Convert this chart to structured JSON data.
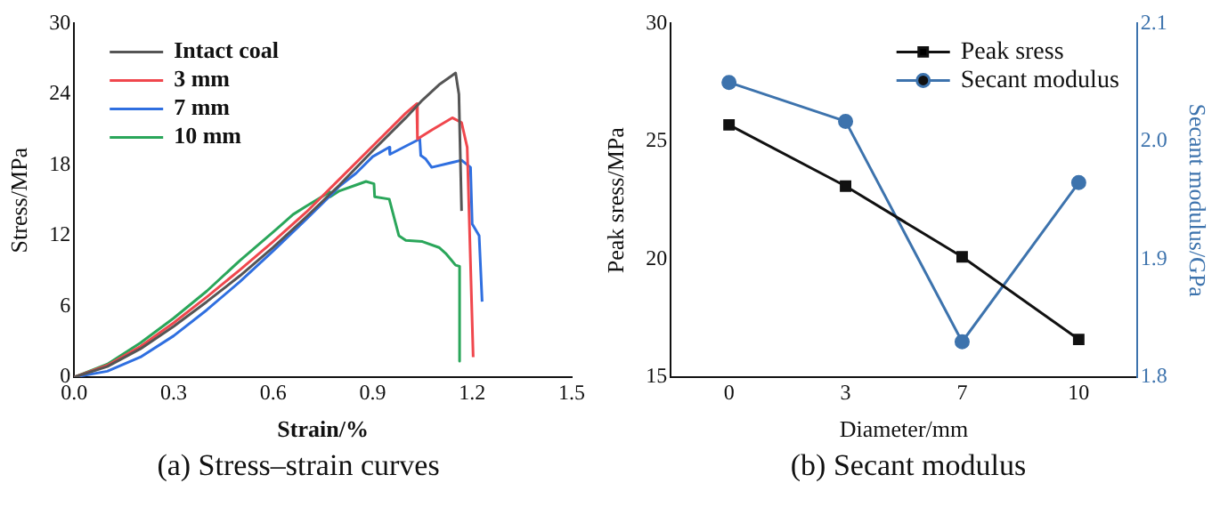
{
  "chart_data": [
    {
      "type": "line",
      "title": "(a) Stress–strain curves",
      "xlabel": "Strain/%",
      "ylabel": "Stress/MPa",
      "legend": "top left",
      "marker": "none",
      "xlim": [
        0,
        1.5
      ],
      "xticks": [
        {
          "value": 0,
          "label": "0.0"
        },
        0.3,
        0.6,
        0.9,
        1.2,
        1.5
      ],
      "ylim": [
        0,
        30
      ],
      "yticks": [
        0,
        6,
        12,
        18,
        24,
        30
      ],
      "series": [
        {
          "name": "Intact coal",
          "color": "#555555",
          "x": [
            0,
            0.1,
            0.2,
            0.3,
            0.4,
            0.5,
            0.6,
            0.7,
            0.8,
            0.9,
            1.0,
            1.05,
            1.1,
            1.14,
            1.15,
            1.16,
            1.168
          ],
          "values": [
            0,
            0.9,
            2.4,
            4.3,
            6.4,
            8.6,
            11,
            13.6,
            16.3,
            19.2,
            22,
            23.5,
            24.8,
            25.6,
            25.8,
            24,
            14.1
          ]
        },
        {
          "name": "3 mm",
          "color": "#f0474d",
          "x": [
            0,
            0.1,
            0.2,
            0.3,
            0.4,
            0.5,
            0.6,
            0.7,
            0.8,
            0.9,
            1.0,
            1.033,
            1.035,
            1.08,
            1.14,
            1.168,
            1.185,
            1.203
          ],
          "values": [
            0,
            1.0,
            2.6,
            4.6,
            6.8,
            9.1,
            11.5,
            14.0,
            16.8,
            19.6,
            22.4,
            23.2,
            20.2,
            21.0,
            22.0,
            21.6,
            19.5,
            1.7
          ]
        },
        {
          "name": "7 mm",
          "color": "#2f6fe0",
          "x": [
            0,
            0.1,
            0.2,
            0.3,
            0.4,
            0.5,
            0.6,
            0.7,
            0.78,
            0.8,
            0.85,
            0.9,
            0.95,
            0.952,
            1.0,
            1.042,
            1.045,
            1.06,
            1.078,
            1.168,
            1.195,
            1.2,
            1.221,
            1.23
          ],
          "values": [
            0,
            0.5,
            1.7,
            3.5,
            5.7,
            8.1,
            10.7,
            13.4,
            15.6,
            16.2,
            17.3,
            18.7,
            19.5,
            18.9,
            19.6,
            20.2,
            18.8,
            18.5,
            17.8,
            18.4,
            17.8,
            13.0,
            12.0,
            6.4
          ]
        },
        {
          "name": "10 mm",
          "color": "#2aa65a",
          "x": [
            0,
            0.1,
            0.2,
            0.3,
            0.4,
            0.5,
            0.6,
            0.66,
            0.7,
            0.77,
            0.772,
            0.8,
            0.85,
            0.88,
            0.904,
            0.906,
            0.95,
            0.979,
            1.0,
            1.05,
            1.1,
            1.12,
            1.15,
            1.162,
            1.162
          ],
          "values": [
            0,
            1.1,
            2.9,
            5.0,
            7.3,
            9.9,
            12.3,
            13.8,
            14.5,
            15.7,
            15.3,
            15.8,
            16.3,
            16.6,
            16.4,
            15.3,
            15.1,
            12.0,
            11.6,
            11.5,
            11.0,
            10.5,
            9.5,
            9.4,
            1.35
          ]
        }
      ]
    },
    {
      "type": "line",
      "title": "(b) Secant modulus",
      "xlabel": "Diameter/mm",
      "ylabel": "Peak sress/MPa",
      "y2label": "Secant modulus/GPa",
      "legend": "top right",
      "categories": [
        "0",
        "3",
        "7",
        "10"
      ],
      "ylim": [
        15,
        30
      ],
      "yticks": [
        15,
        20,
        25,
        30
      ],
      "y2lim": [
        1.8,
        2.1
      ],
      "y2ticks": [
        1.8,
        1.9,
        {
          "value": 2.0,
          "label": "2.0"
        },
        2.1
      ],
      "series": [
        {
          "name": "Peak sress",
          "color": "#111111",
          "marker": "square",
          "values": [
            25.7,
            23.1,
            20.1,
            16.6
          ]
        },
        {
          "name": "Secant modulus",
          "color": "#3d73ad",
          "marker": "circle",
          "axis": "y2",
          "values": [
            2.05,
            2.017,
            1.83,
            1.965
          ]
        }
      ]
    }
  ]
}
